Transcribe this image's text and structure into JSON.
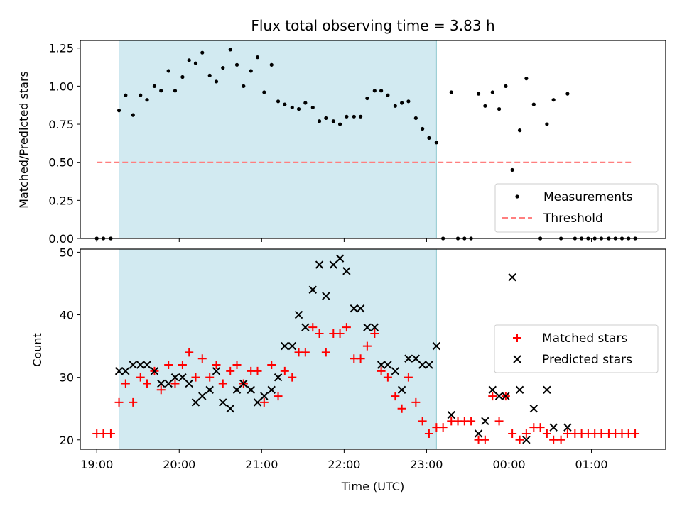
{
  "chart_data": [
    {
      "type": "scatter",
      "title": "Flux total observing time = 3.83 h",
      "ylabel": "Matched/Predicted stars",
      "xlabel": "",
      "xlim": [
        -0.2,
        6.9
      ],
      "ylim": [
        0,
        1.3
      ],
      "yticks": [
        0.0,
        0.25,
        0.5,
        0.75,
        1.0,
        1.25
      ],
      "ytick_labels": [
        "0.00",
        "0.25",
        "0.50",
        "0.75",
        "1.00",
        "1.25"
      ],
      "shaded_interval": [
        0.27,
        4.12
      ],
      "legend": {
        "position": "bottom-right",
        "entries": [
          "Measurements",
          "Threshold"
        ]
      },
      "threshold": {
        "name": "Threshold",
        "value": 0.5,
        "x": [
          0.0,
          6.5
        ]
      },
      "series": [
        {
          "name": "Measurements",
          "points": [
            [
              0.0,
              0
            ],
            [
              0.08,
              0
            ],
            [
              0.17,
              0
            ],
            [
              0.27,
              0.84
            ],
            [
              0.35,
              0.94
            ],
            [
              0.44,
              0.81
            ],
            [
              0.53,
              0.94
            ],
            [
              0.61,
              0.91
            ],
            [
              0.7,
              1.0
            ],
            [
              0.78,
              0.97
            ],
            [
              0.87,
              1.1
            ],
            [
              0.95,
              0.97
            ],
            [
              1.04,
              1.06
            ],
            [
              1.12,
              1.17
            ],
            [
              1.2,
              1.15
            ],
            [
              1.28,
              1.22
            ],
            [
              1.37,
              1.07
            ],
            [
              1.45,
              1.03
            ],
            [
              1.53,
              1.12
            ],
            [
              1.62,
              1.24
            ],
            [
              1.7,
              1.14
            ],
            [
              1.78,
              1.0
            ],
            [
              1.87,
              1.1
            ],
            [
              1.95,
              1.19
            ],
            [
              2.03,
              0.96
            ],
            [
              2.12,
              1.14
            ],
            [
              2.2,
              0.9
            ],
            [
              2.28,
              0.88
            ],
            [
              2.37,
              0.86
            ],
            [
              2.45,
              0.85
            ],
            [
              2.53,
              0.89
            ],
            [
              2.62,
              0.86
            ],
            [
              2.7,
              0.77
            ],
            [
              2.78,
              0.79
            ],
            [
              2.87,
              0.77
            ],
            [
              2.95,
              0.75
            ],
            [
              3.03,
              0.8
            ],
            [
              3.12,
              0.8
            ],
            [
              3.2,
              0.8
            ],
            [
              3.28,
              0.92
            ],
            [
              3.37,
              0.97
            ],
            [
              3.45,
              0.97
            ],
            [
              3.53,
              0.94
            ],
            [
              3.62,
              0.87
            ],
            [
              3.7,
              0.89
            ],
            [
              3.78,
              0.9
            ],
            [
              3.87,
              0.79
            ],
            [
              3.95,
              0.72
            ],
            [
              4.03,
              0.66
            ],
            [
              4.12,
              0.63
            ],
            [
              4.2,
              0
            ],
            [
              4.3,
              0.96
            ],
            [
              4.38,
              0
            ],
            [
              4.46,
              0
            ],
            [
              4.54,
              0
            ],
            [
              4.63,
              0.95
            ],
            [
              4.71,
              0.87
            ],
            [
              4.8,
              0.96
            ],
            [
              4.88,
              0.85
            ],
            [
              4.96,
              1.0
            ],
            [
              5.04,
              0.45
            ],
            [
              5.13,
              0.71
            ],
            [
              5.21,
              1.05
            ],
            [
              5.3,
              0.88
            ],
            [
              5.38,
              0
            ],
            [
              5.46,
              0.75
            ],
            [
              5.54,
              0.91
            ],
            [
              5.63,
              0
            ],
            [
              5.71,
              0.95
            ],
            [
              5.8,
              0
            ],
            [
              5.88,
              0
            ],
            [
              5.96,
              0
            ],
            [
              6.04,
              0
            ],
            [
              6.12,
              0
            ],
            [
              6.21,
              0
            ],
            [
              6.29,
              0
            ],
            [
              6.37,
              0
            ],
            [
              6.45,
              0
            ],
            [
              6.53,
              0
            ]
          ]
        }
      ]
    },
    {
      "type": "scatter",
      "title": "",
      "ylabel": "Count",
      "xlabel": "Time (UTC)",
      "xlim": [
        -0.2,
        6.9
      ],
      "ylim": [
        18.5,
        50.5
      ],
      "yticks": [
        20,
        30,
        40,
        50
      ],
      "ytick_labels": [
        "20",
        "30",
        "40",
        "50"
      ],
      "xticks": [
        0,
        1,
        2,
        3,
        4,
        5,
        6
      ],
      "xtick_labels": [
        "19:00",
        "20:00",
        "21:00",
        "22:00",
        "23:00",
        "00:00",
        "01:00"
      ],
      "shaded_interval": [
        0.27,
        4.12
      ],
      "legend": {
        "position": "center-right",
        "entries": [
          "Matched stars",
          "Predicted stars"
        ]
      },
      "series": [
        {
          "name": "Matched stars",
          "marker": "plus",
          "color": "#ff0000",
          "points": [
            [
              0.0,
              21
            ],
            [
              0.08,
              21
            ],
            [
              0.17,
              21
            ],
            [
              0.27,
              26
            ],
            [
              0.35,
              29
            ],
            [
              0.44,
              26
            ],
            [
              0.53,
              30
            ],
            [
              0.61,
              29
            ],
            [
              0.7,
              31
            ],
            [
              0.78,
              28
            ],
            [
              0.87,
              32
            ],
            [
              0.95,
              29
            ],
            [
              1.04,
              32
            ],
            [
              1.12,
              34
            ],
            [
              1.2,
              30
            ],
            [
              1.28,
              33
            ],
            [
              1.37,
              30
            ],
            [
              1.45,
              32
            ],
            [
              1.53,
              29
            ],
            [
              1.62,
              31
            ],
            [
              1.7,
              32
            ],
            [
              1.78,
              29
            ],
            [
              1.87,
              31
            ],
            [
              1.95,
              31
            ],
            [
              2.03,
              26
            ],
            [
              2.12,
              32
            ],
            [
              2.2,
              27
            ],
            [
              2.28,
              31
            ],
            [
              2.37,
              30
            ],
            [
              2.45,
              34
            ],
            [
              2.53,
              34
            ],
            [
              2.62,
              38
            ],
            [
              2.7,
              37
            ],
            [
              2.78,
              34
            ],
            [
              2.87,
              37
            ],
            [
              2.95,
              37
            ],
            [
              3.03,
              38
            ],
            [
              3.12,
              33
            ],
            [
              3.2,
              33
            ],
            [
              3.28,
              35
            ],
            [
              3.37,
              37
            ],
            [
              3.45,
              31
            ],
            [
              3.53,
              30
            ],
            [
              3.62,
              27
            ],
            [
              3.7,
              25
            ],
            [
              3.78,
              30
            ],
            [
              3.87,
              26
            ],
            [
              3.95,
              23
            ],
            [
              4.03,
              21
            ],
            [
              4.12,
              22
            ],
            [
              4.2,
              22
            ],
            [
              4.3,
              23
            ],
            [
              4.38,
              23
            ],
            [
              4.46,
              23
            ],
            [
              4.54,
              23
            ],
            [
              4.63,
              20
            ],
            [
              4.71,
              20
            ],
            [
              4.8,
              27
            ],
            [
              4.88,
              23
            ],
            [
              4.96,
              27
            ],
            [
              5.04,
              21
            ],
            [
              5.13,
              20
            ],
            [
              5.21,
              21
            ],
            [
              5.3,
              22
            ],
            [
              5.38,
              22
            ],
            [
              5.46,
              21
            ],
            [
              5.54,
              20
            ],
            [
              5.63,
              20
            ],
            [
              5.71,
              21
            ],
            [
              5.8,
              21
            ],
            [
              5.88,
              21
            ],
            [
              5.96,
              21
            ],
            [
              6.04,
              21
            ],
            [
              6.12,
              21
            ],
            [
              6.21,
              21
            ],
            [
              6.29,
              21
            ],
            [
              6.37,
              21
            ],
            [
              6.45,
              21
            ],
            [
              6.53,
              21
            ]
          ]
        },
        {
          "name": "Predicted stars",
          "marker": "x",
          "color": "#000000",
          "points": [
            [
              0.27,
              31
            ],
            [
              0.35,
              31
            ],
            [
              0.44,
              32
            ],
            [
              0.53,
              32
            ],
            [
              0.61,
              32
            ],
            [
              0.7,
              31
            ],
            [
              0.78,
              29
            ],
            [
              0.87,
              29
            ],
            [
              0.95,
              30
            ],
            [
              1.04,
              30
            ],
            [
              1.12,
              29
            ],
            [
              1.2,
              26
            ],
            [
              1.28,
              27
            ],
            [
              1.37,
              28
            ],
            [
              1.45,
              31
            ],
            [
              1.53,
              26
            ],
            [
              1.62,
              25
            ],
            [
              1.7,
              28
            ],
            [
              1.78,
              29
            ],
            [
              1.87,
              28
            ],
            [
              1.95,
              26
            ],
            [
              2.03,
              27
            ],
            [
              2.12,
              28
            ],
            [
              2.2,
              30
            ],
            [
              2.28,
              35
            ],
            [
              2.37,
              35
            ],
            [
              2.45,
              40
            ],
            [
              2.53,
              38
            ],
            [
              2.62,
              44
            ],
            [
              2.7,
              48
            ],
            [
              2.78,
              43
            ],
            [
              2.87,
              48
            ],
            [
              2.95,
              49
            ],
            [
              3.03,
              47
            ],
            [
              3.12,
              41
            ],
            [
              3.2,
              41
            ],
            [
              3.28,
              38
            ],
            [
              3.37,
              38
            ],
            [
              3.45,
              32
            ],
            [
              3.53,
              32
            ],
            [
              3.62,
              31
            ],
            [
              3.7,
              28
            ],
            [
              3.78,
              33
            ],
            [
              3.87,
              33
            ],
            [
              3.95,
              32
            ],
            [
              4.03,
              32
            ],
            [
              4.12,
              35
            ],
            [
              4.3,
              24
            ],
            [
              4.63,
              21
            ],
            [
              4.71,
              23
            ],
            [
              4.8,
              28
            ],
            [
              4.88,
              27
            ],
            [
              4.96,
              27
            ],
            [
              5.04,
              46
            ],
            [
              5.13,
              28
            ],
            [
              5.21,
              20
            ],
            [
              5.3,
              25
            ],
            [
              5.46,
              28
            ],
            [
              5.54,
              22
            ],
            [
              5.71,
              22
            ]
          ]
        }
      ]
    }
  ]
}
